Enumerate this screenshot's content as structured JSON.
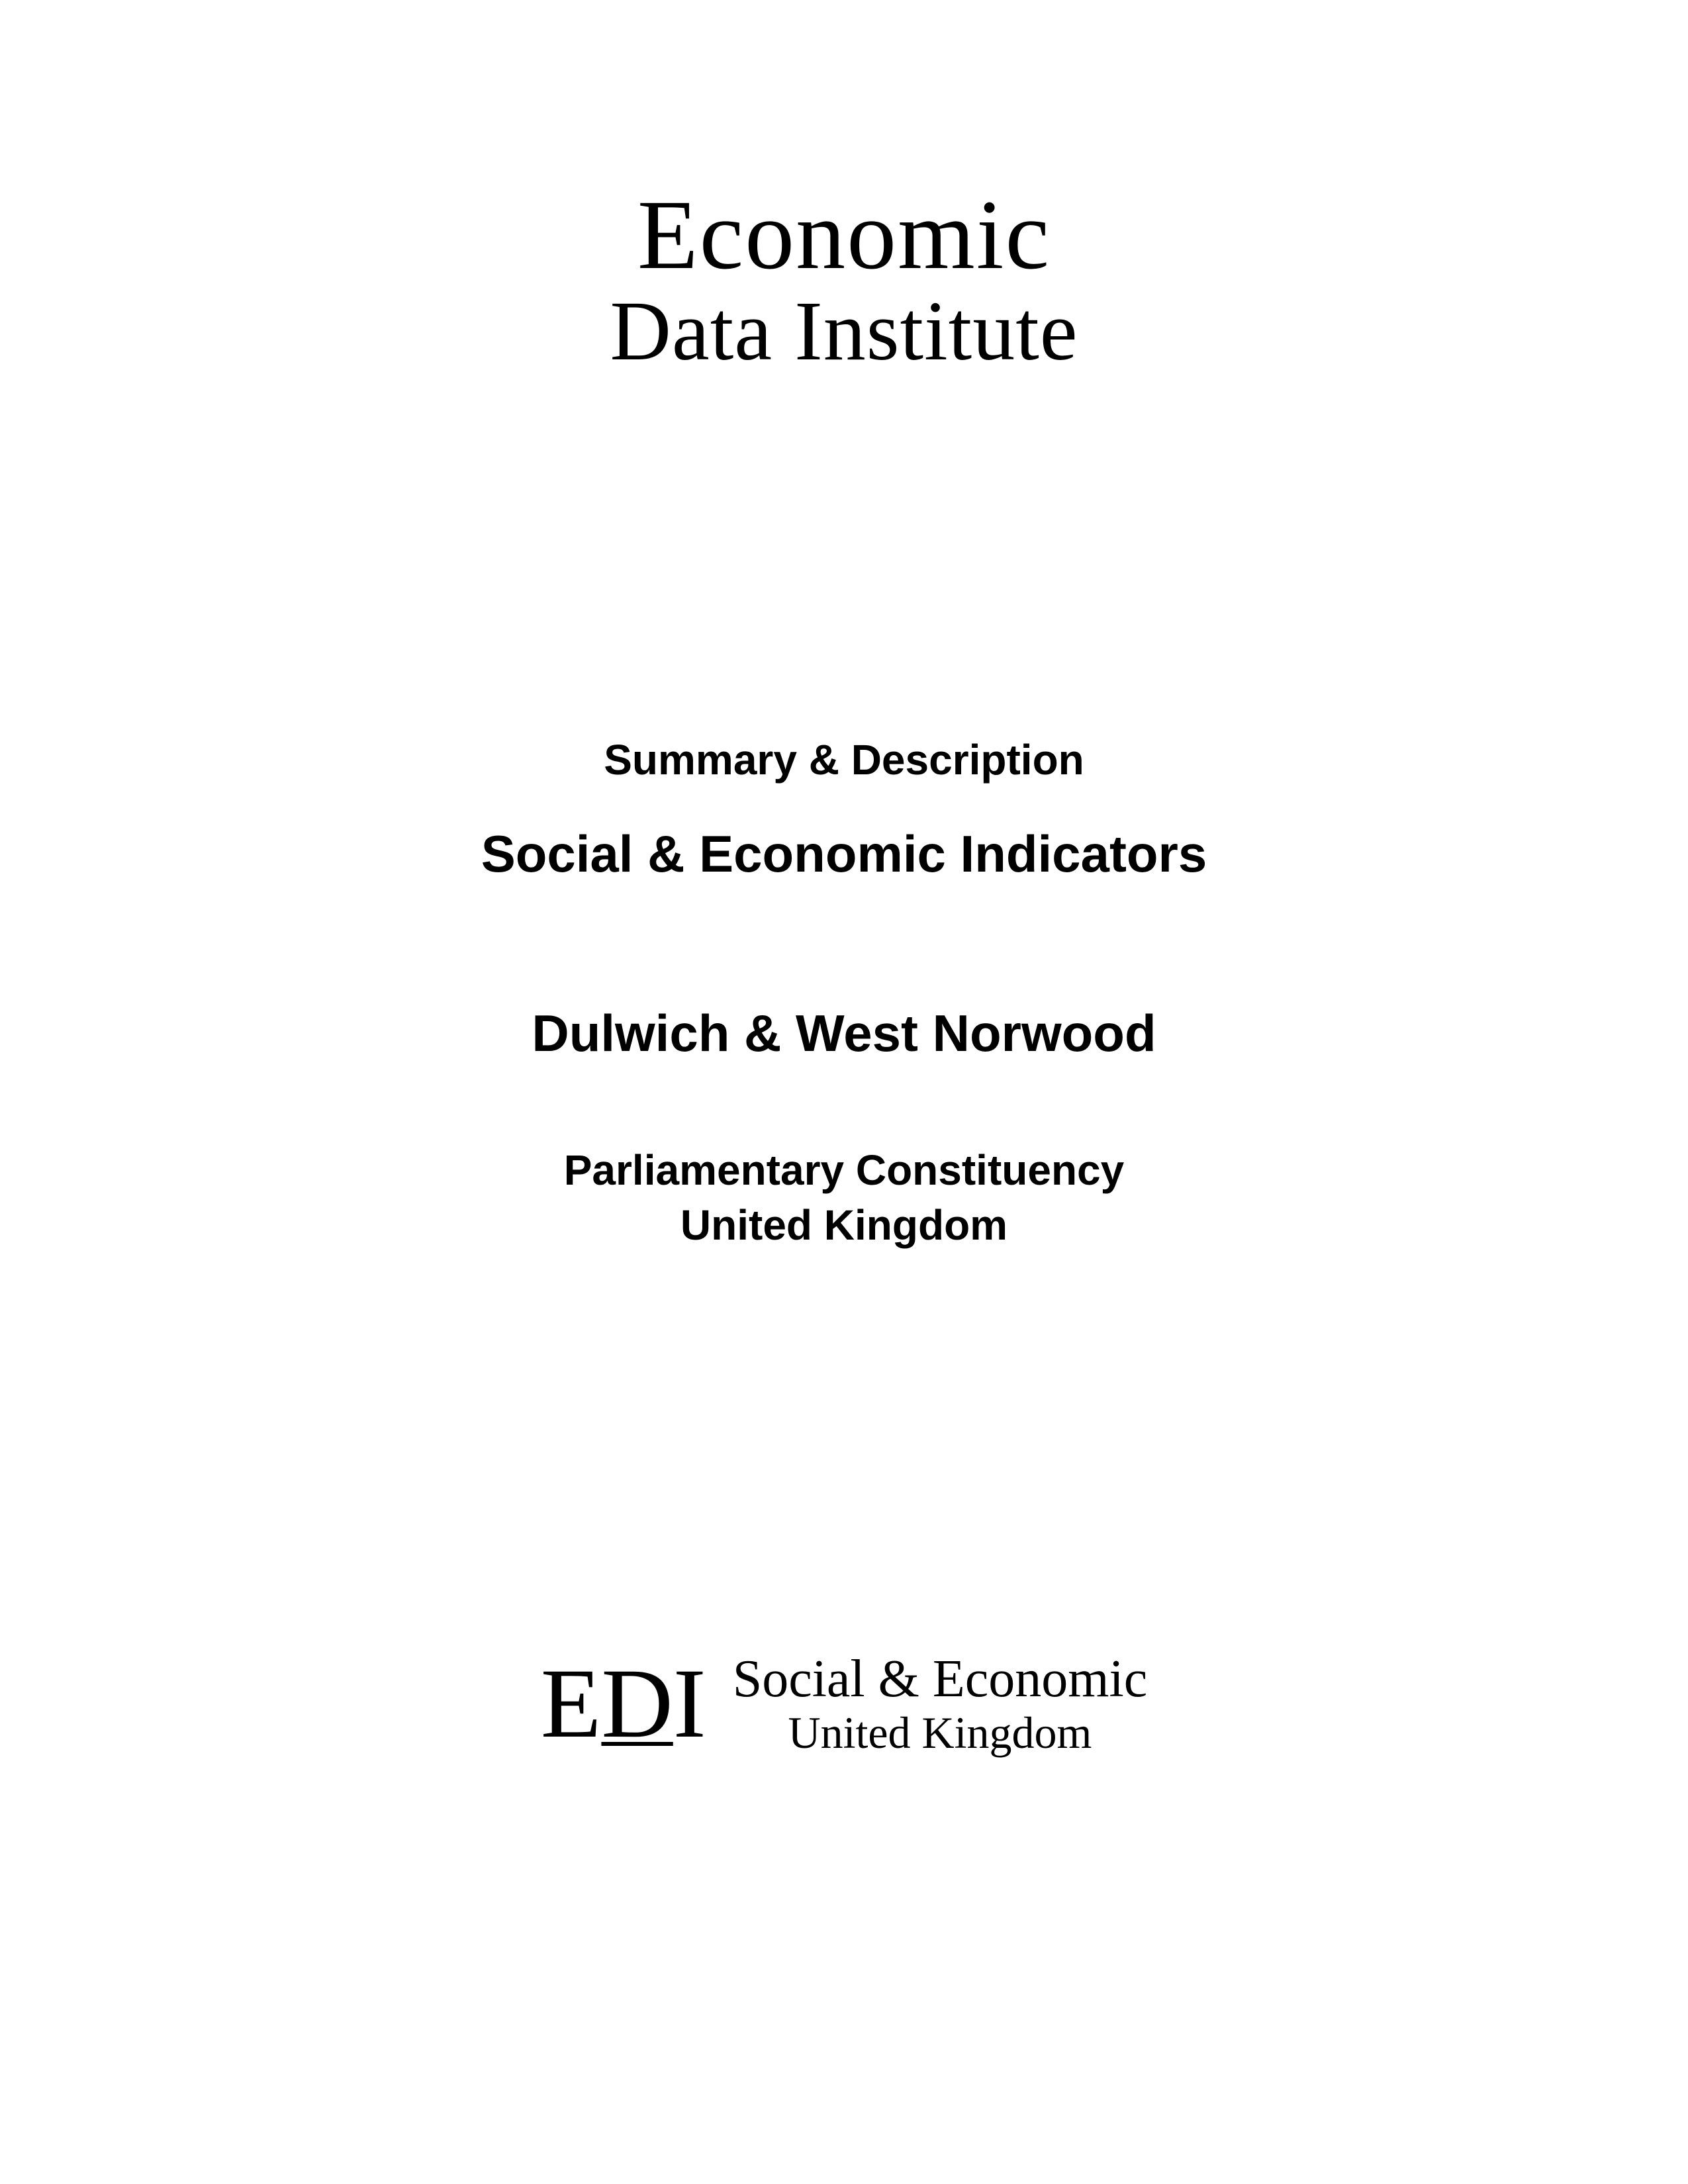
{
  "logo_top": {
    "line1": "Economic",
    "line2": "Data Institute"
  },
  "content": {
    "summary": "Summary & Description",
    "indicators": "Social & Economic Indicators",
    "constituency": "Dulwich & West Norwood",
    "parliamentary": "Parliamentary Constituency",
    "country": "United Kingdom"
  },
  "logo_bottom": {
    "abbr_e": "E",
    "abbr_d": "D",
    "abbr_i": "I",
    "line1": "Social & Economic",
    "line2": "United Kingdom"
  },
  "styling": {
    "background_color": "#ffffff",
    "text_color": "#000000",
    "logo_top_font": "Georgia, Times New Roman, serif",
    "logo_top_line1_fontsize": 150,
    "logo_top_line2_fontsize": 128,
    "summary_fontsize": 64,
    "indicators_fontsize": 78,
    "constituency_fontsize": 78,
    "parliamentary_fontsize": 64,
    "body_font": "Arial, Helvetica, sans-serif",
    "logo_bottom_abbr_fontsize": 150,
    "logo_bottom_line1_fontsize": 80,
    "logo_bottom_line2_fontsize": 68
  }
}
